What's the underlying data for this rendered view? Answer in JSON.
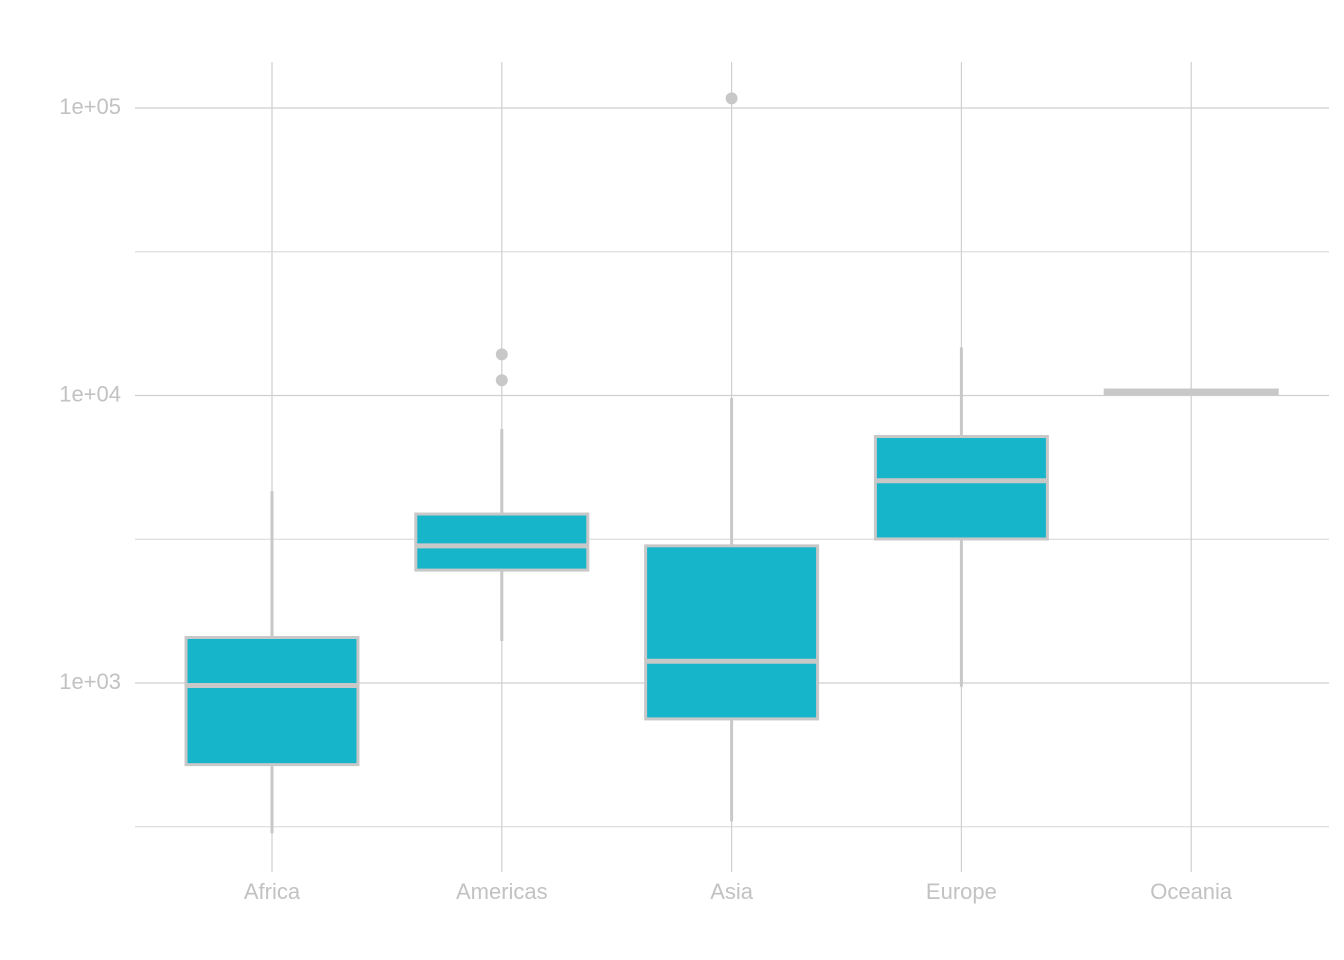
{
  "chart_data": {
    "type": "boxplot",
    "title": "",
    "xlabel": "",
    "ylabel": "",
    "y_scale": "log10",
    "ylim": [
      270,
      150000
    ],
    "y_ticks": [
      1000,
      10000,
      100000
    ],
    "y_tick_labels": [
      "1e+03",
      "1e+04",
      "1e+05"
    ],
    "y_minor_ticks": [
      316.2,
      3162.3,
      31622.8
    ],
    "grid": true,
    "legend": "none",
    "colors": {
      "fill": "#17b5c9",
      "outline": "#c8c8c8",
      "grid": "#cfcfcf",
      "text": "#c2c2c2"
    },
    "categories": [
      "Africa",
      "Americas",
      "Asia",
      "Europe",
      "Oceania"
    ],
    "boxes": [
      {
        "category": "Africa",
        "whisker_low": 300,
        "q1": 520,
        "median": 980,
        "q3": 1440,
        "whisker_high": 4650,
        "outliers": []
      },
      {
        "category": "Americas",
        "whisker_low": 1400,
        "q1": 2470,
        "median": 3000,
        "q3": 3870,
        "whisker_high": 7650,
        "outliers": [
          11300,
          13900
        ]
      },
      {
        "category": "Asia",
        "whisker_low": 330,
        "q1": 750,
        "median": 1190,
        "q3": 3000,
        "whisker_high": 9800,
        "outliers": [
          108000
        ]
      },
      {
        "category": "Europe",
        "whisker_low": 970,
        "q1": 3170,
        "median": 5050,
        "q3": 7200,
        "whisker_high": 14700,
        "outliers": []
      },
      {
        "category": "Oceania",
        "whisker_low": 10150,
        "q1": 10250,
        "median": 10350,
        "q3": 10450,
        "whisker_high": 10500,
        "outliers": []
      }
    ]
  }
}
